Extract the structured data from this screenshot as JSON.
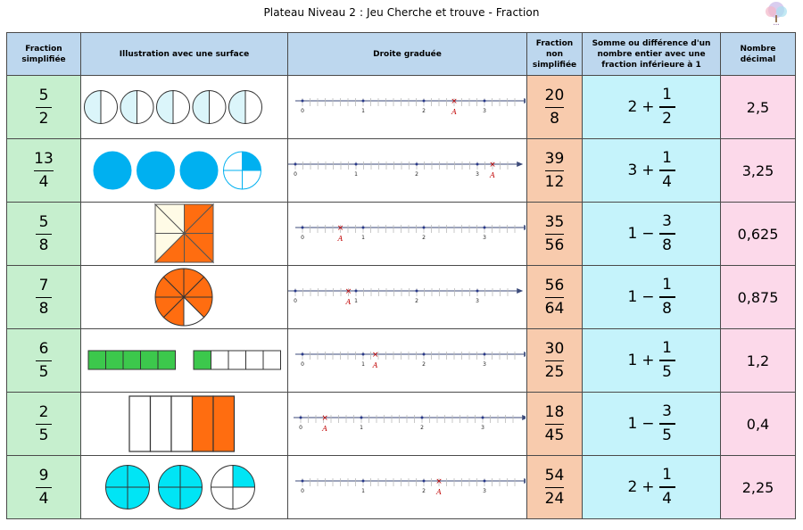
{
  "title": "Plateau Niveau 2 : Jeu Cherche et trouve - Fraction",
  "headers": {
    "simplified": [
      "Fraction",
      "simplifiée"
    ],
    "illustration": "Illustration avec une surface",
    "numberline": "Droite graduée",
    "non_simplified": [
      "Fraction",
      "non",
      "simplifiée"
    ],
    "sum": [
      "Somme ou différence d'un",
      "nombre entier avec une",
      "fraction inférieure à 1"
    ],
    "decimal": [
      "Nombre",
      "décimal"
    ]
  },
  "colors": {
    "header": "#bdd7ee",
    "simplified": "#c6efce",
    "non_simplified": "#f8cbad",
    "sum": "#c5f3fb",
    "decimal": "#fcd9ea",
    "orange": "#ff6d10",
    "blue": "#00b0f0",
    "cyan": "#00e5f5",
    "green": "#3cc84c"
  },
  "line_point_label": "A",
  "rows": [
    {
      "num": "5",
      "den": "2",
      "ill": "pale-circles",
      "ill_total": 5,
      "ill_shaded_halves": 0,
      "line": {
        "ticks": [
          "0",
          "1",
          "2",
          "3"
        ],
        "point": 2.5
      },
      "nsnum": "20",
      "nsden": "8",
      "int": "2",
      "op": "+",
      "fnum": "1",
      "fden": "2",
      "dec": "2,5"
    },
    {
      "num": "13",
      "den": "4",
      "ill": "blue-circles",
      "ill_full": 3,
      "ill_quarters": 1,
      "line": {
        "ticks": [
          "0",
          "1",
          "2",
          "3"
        ],
        "point": 3.25
      },
      "nsnum": "39",
      "nsden": "12",
      "int": "3",
      "op": "+",
      "fnum": "1",
      "fden": "4",
      "dec": "3,25"
    },
    {
      "num": "5",
      "den": "8",
      "ill": "square-eighths",
      "ill_shaded": 5,
      "line": {
        "ticks": [
          "0",
          "1",
          "2",
          "3"
        ],
        "point": 0.625
      },
      "nsnum": "35",
      "nsden": "56",
      "int": "1",
      "op": "−",
      "fnum": "3",
      "fden": "8",
      "dec": "0,625"
    },
    {
      "num": "7",
      "den": "8",
      "ill": "circle-eighths",
      "ill_shaded": 7,
      "line": {
        "ticks": [
          "0",
          "1",
          "2",
          "3"
        ],
        "point": 0.875
      },
      "nsnum": "56",
      "nsden": "64",
      "int": "1",
      "op": "−",
      "fnum": "1",
      "fden": "8",
      "dec": "0,875"
    },
    {
      "num": "6",
      "den": "5",
      "ill": "bars-fifths",
      "ill_shaded": 6,
      "line": {
        "ticks": [
          "0",
          "1",
          "2",
          "3"
        ],
        "point": 1.2
      },
      "nsnum": "30",
      "nsden": "25",
      "int": "1",
      "op": "+",
      "fnum": "1",
      "fden": "5",
      "dec": "1,2"
    },
    {
      "num": "2",
      "den": "5",
      "ill": "rect-fifths",
      "ill_shaded": 2,
      "line": {
        "ticks": [
          "0",
          "1",
          "2",
          "3"
        ],
        "point": 0.4
      },
      "nsnum": "18",
      "nsden": "45",
      "int": "1",
      "op": "−",
      "fnum": "3",
      "fden": "5",
      "dec": "0,4"
    },
    {
      "num": "9",
      "den": "4",
      "ill": "cyan-circles",
      "ill_full": 2,
      "ill_quarters": 1,
      "line": {
        "ticks": [
          "0",
          "1",
          "2",
          "3"
        ],
        "point": 2.25
      },
      "nsnum": "54",
      "nsden": "24",
      "int": "2",
      "op": "+",
      "fnum": "1",
      "fden": "4",
      "dec": "2,25"
    }
  ]
}
